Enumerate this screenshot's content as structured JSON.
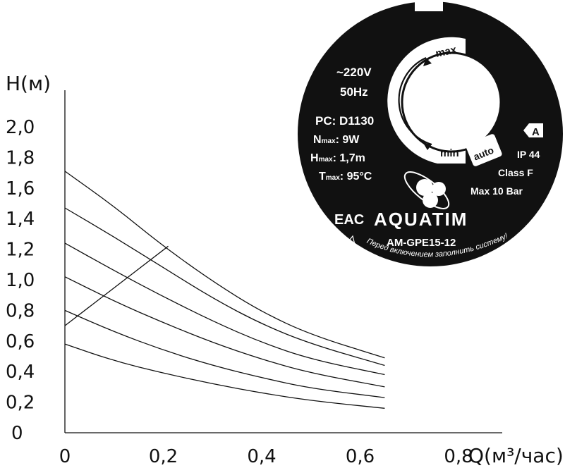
{
  "chart_data": {
    "type": "line",
    "xlabel": "Q(м³/час)",
    "ylabel": "H(м)",
    "xlim": [
      0,
      0.8
    ],
    "ylim": [
      0,
      2.0
    ],
    "x_ticks": [
      "0",
      "0,2",
      "0,4",
      "0,6",
      "0,8"
    ],
    "y_ticks": [
      "0",
      "0,2",
      "0,4",
      "0,6",
      "0,8",
      "1,0",
      "1,2",
      "1,4",
      "1,6",
      "1,8",
      "2,0"
    ],
    "grid": false,
    "series": [
      {
        "x": [
          0,
          0.1,
          0.2,
          0.3,
          0.4,
          0.5,
          0.65
        ],
        "y": [
          1.71,
          1.48,
          1.22,
          0.99,
          0.79,
          0.64,
          0.49
        ]
      },
      {
        "x": [
          0,
          0.1,
          0.2,
          0.3,
          0.4,
          0.5,
          0.65
        ],
        "y": [
          1.47,
          1.28,
          1.08,
          0.88,
          0.71,
          0.58,
          0.44
        ]
      },
      {
        "x": [
          0,
          0.1,
          0.2,
          0.3,
          0.4,
          0.5,
          0.65
        ],
        "y": [
          1.24,
          1.06,
          0.89,
          0.73,
          0.59,
          0.48,
          0.38
        ]
      },
      {
        "x": [
          0,
          0.1,
          0.2,
          0.3,
          0.4,
          0.5,
          0.65
        ],
        "y": [
          1.02,
          0.86,
          0.72,
          0.59,
          0.48,
          0.39,
          0.3
        ]
      },
      {
        "x": [
          0,
          0.1,
          0.2,
          0.3,
          0.4,
          0.5,
          0.65
        ],
        "y": [
          0.8,
          0.66,
          0.54,
          0.44,
          0.36,
          0.29,
          0.23
        ]
      },
      {
        "x": [
          0,
          0.1,
          0.2,
          0.3,
          0.4,
          0.5,
          0.65
        ],
        "y": [
          0.58,
          0.47,
          0.39,
          0.32,
          0.26,
          0.21,
          0.16
        ]
      },
      {
        "x": [
          0,
          0.21
        ],
        "y": [
          0.7,
          1.22
        ]
      }
    ]
  },
  "pump_label": {
    "voltage": "~220V",
    "frequency": "50Hz",
    "pc": "PC: D1130",
    "n_max": {
      "main": "N",
      "sub": "max",
      "value": ": 9W"
    },
    "h_max": {
      "main": "H",
      "sub": "max",
      "value": ": 1,7m"
    },
    "t_max": {
      "main": "T",
      "sub": "max",
      "value": ": 95°C"
    },
    "dial_max": "max",
    "dial_min": "min",
    "dial_auto": "auto",
    "class_badge": "A",
    "ip": "IP 44",
    "insulation_class": "Class F",
    "pressure": "Max 10 Bar",
    "cert_mark": "EAC",
    "brand": "AQUATIM",
    "model": "AM-GPE15-12",
    "warning": "Перед включением заполнить систему!",
    "colors": {
      "disc": "#111111",
      "text": "#ffffff"
    }
  }
}
